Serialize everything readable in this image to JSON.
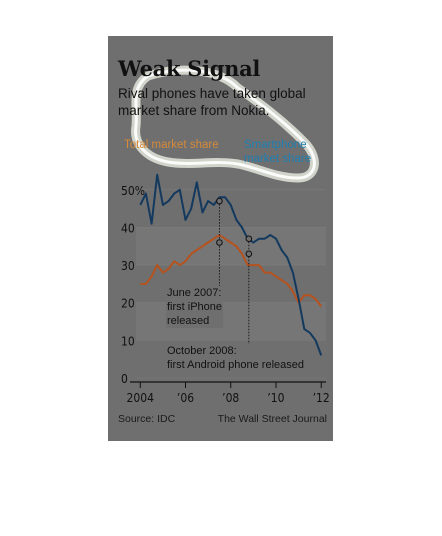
{
  "header": {
    "title": "Weak Signal",
    "subtitle": "Rival phones have taken global market share from Nokia."
  },
  "legend": {
    "total": "Total market share",
    "smartphone_line1": "Smartphone",
    "smartphone_line2": "market share"
  },
  "annotations": {
    "iphone_date": "June 2007:",
    "iphone_line1": "first iPhone",
    "iphone_line2": "released",
    "android_date": "October 2008:",
    "android_line1": "first Android phone released"
  },
  "footer": {
    "source": "Source: IDC",
    "credit": "The Wall Street Journal"
  },
  "colors": {
    "total": "#b5521e",
    "smartphone": "#13395e",
    "background": "#6f6f6f"
  },
  "chart_data": {
    "type": "line",
    "title": "Weak Signal",
    "subtitle": "Rival phones have taken global market share from Nokia.",
    "x_ticks": [
      {
        "x": 2004,
        "label": "2004"
      },
      {
        "x": 2006,
        "label": "’06"
      },
      {
        "x": 2008,
        "label": "’08"
      },
      {
        "x": 2010,
        "label": "’10"
      },
      {
        "x": 2012,
        "label": "’12"
      }
    ],
    "y_ticks": [
      {
        "y": 0,
        "label": "0"
      },
      {
        "y": 10,
        "label": "10"
      },
      {
        "y": 20,
        "label": "20"
      },
      {
        "y": 30,
        "label": "30"
      },
      {
        "y": 40,
        "label": "40"
      },
      {
        "y": 50,
        "label": "50%"
      }
    ],
    "xlim": [
      2003.9,
      2012.3
    ],
    "ylim": [
      0,
      55
    ],
    "grid": "horizontal bands",
    "legend": "top",
    "series": [
      {
        "name": "Total market share",
        "color": "#b5521e",
        "x": [
          2004.0,
          2004.25,
          2004.5,
          2004.75,
          2005.0,
          2005.25,
          2005.5,
          2005.75,
          2006.0,
          2006.25,
          2006.5,
          2006.75,
          2007.0,
          2007.25,
          2007.5,
          2007.75,
          2008.0,
          2008.25,
          2008.5,
          2008.75,
          2009.0,
          2009.25,
          2009.5,
          2009.75,
          2010.0,
          2010.25,
          2010.5,
          2010.75,
          2011.0,
          2011.25,
          2011.5,
          2011.75,
          2012.0
        ],
        "y": [
          25,
          25,
          27,
          30,
          28,
          29,
          31,
          30,
          31,
          33,
          34,
          35,
          36,
          37,
          38,
          37,
          36,
          35,
          33,
          30,
          30,
          30,
          28,
          28,
          27,
          26,
          25,
          23,
          20,
          22,
          22,
          21,
          19
        ]
      },
      {
        "name": "Smartphone market share",
        "color": "#13395e",
        "x": [
          2004.0,
          2004.25,
          2004.5,
          2004.75,
          2005.0,
          2005.25,
          2005.5,
          2005.75,
          2006.0,
          2006.25,
          2006.5,
          2006.75,
          2007.0,
          2007.25,
          2007.5,
          2007.75,
          2008.0,
          2008.25,
          2008.5,
          2008.75,
          2009.0,
          2009.25,
          2009.5,
          2009.75,
          2010.0,
          2010.25,
          2010.5,
          2010.75,
          2011.0,
          2011.25,
          2011.5,
          2011.75,
          2012.0
        ],
        "y": [
          46,
          49,
          41,
          54,
          46,
          47,
          49,
          50,
          42,
          45,
          52,
          44,
          47,
          46,
          48,
          48,
          46,
          42,
          40,
          37,
          36,
          37,
          37,
          38,
          37,
          34,
          32,
          28,
          21,
          13,
          12,
          10,
          6
        ]
      }
    ],
    "markers": [
      {
        "series": "Smartphone market share",
        "x": 2007.5,
        "y": 47
      },
      {
        "series": "Total market share",
        "x": 2007.5,
        "y": 36
      },
      {
        "series": "Smartphone market share",
        "x": 2008.8,
        "y": 37
      },
      {
        "series": "Total market share",
        "x": 2008.8,
        "y": 33
      }
    ]
  }
}
